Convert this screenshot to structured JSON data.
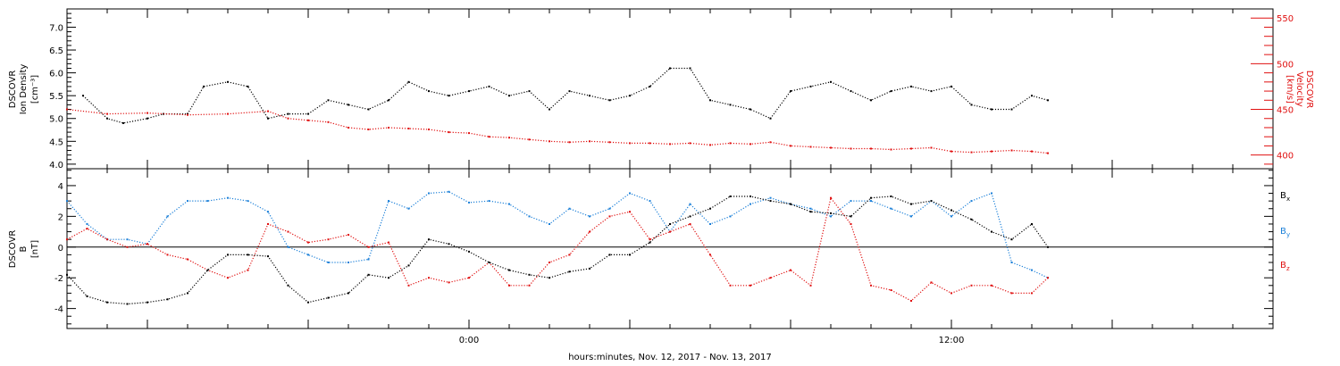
{
  "colors": {
    "black": "#000000",
    "red": "#e01010",
    "blue": "#1a7fd8",
    "axis": "#000000"
  },
  "xaxis": {
    "label": "hours:minutes, Nov. 12, 2017 - Nov. 13, 2017",
    "ticks": [
      "0:00",
      "12:00"
    ],
    "range_hours": [
      -10.0,
      20.0
    ]
  },
  "chart_data": [
    {
      "type": "scatter",
      "title": "",
      "ylabel": [
        "DSCOVR",
        "Ion Density",
        "[cm⁻³]"
      ],
      "ylabel2": [
        "DSCOVR",
        "Velocity",
        "[km/s]"
      ],
      "ylim": [
        3.9,
        7.4
      ],
      "y2lim": [
        385,
        560
      ],
      "yticks": [
        "4.0",
        "4.5",
        "5.0",
        "5.5",
        "6.0",
        "6.5",
        "7.0"
      ],
      "y2ticks": [
        "400",
        "450",
        "500",
        "550"
      ],
      "series": [
        {
          "name": "Ion Density",
          "axis": "left",
          "color": "#000000",
          "x": [
            -9.6,
            -9.0,
            -8.6,
            -8.0,
            -7.6,
            -7.0,
            -6.6,
            -6.0,
            -5.5,
            -5.0,
            -4.5,
            -4.0,
            -3.5,
            -3.0,
            -2.5,
            -2.0,
            -1.5,
            -1.0,
            -0.5,
            0.0,
            0.5,
            1.0,
            1.5,
            2.0,
            2.5,
            3.0,
            3.5,
            4.0,
            4.5,
            5.0,
            5.5,
            6.0,
            6.5,
            7.0,
            7.5,
            8.0,
            8.5,
            9.0,
            9.5,
            10.0,
            10.5,
            11.0,
            11.5,
            12.0,
            12.5,
            13.0,
            13.5,
            14.0,
            14.4
          ],
          "y": [
            5.5,
            5.0,
            4.9,
            5.0,
            5.1,
            5.1,
            5.7,
            5.8,
            5.7,
            5.0,
            5.1,
            5.1,
            5.4,
            5.3,
            5.2,
            5.4,
            5.8,
            5.6,
            5.5,
            5.6,
            5.7,
            5.5,
            5.6,
            5.2,
            5.6,
            5.5,
            5.4,
            5.5,
            5.7,
            6.1,
            6.1,
            5.4,
            5.3,
            5.2,
            5.0,
            5.6,
            5.7,
            5.8,
            5.6,
            5.4,
            5.6,
            5.7,
            5.6,
            5.7,
            5.3,
            5.2,
            5.2,
            5.5,
            5.4
          ]
        },
        {
          "name": "Velocity",
          "axis": "right",
          "color": "#e01010",
          "x": [
            -10.0,
            -9.0,
            -8.0,
            -7.0,
            -6.0,
            -5.0,
            -4.5,
            -4.0,
            -3.5,
            -3.0,
            -2.5,
            -2.0,
            -1.5,
            -1.0,
            -0.5,
            0.0,
            0.5,
            1.0,
            1.5,
            2.0,
            2.5,
            3.0,
            3.5,
            4.0,
            4.5,
            5.0,
            5.5,
            6.0,
            6.5,
            7.0,
            7.5,
            8.0,
            8.5,
            9.0,
            9.5,
            10.0,
            10.5,
            11.0,
            11.5,
            12.0,
            12.5,
            13.0,
            13.5,
            14.0,
            14.4
          ],
          "y": [
            450,
            445,
            446,
            444,
            445,
            448,
            440,
            438,
            436,
            430,
            428,
            430,
            429,
            428,
            425,
            424,
            420,
            419,
            417,
            415,
            414,
            415,
            414,
            413,
            413,
            412,
            413,
            411,
            413,
            412,
            414,
            410,
            409,
            408,
            407,
            407,
            406,
            407,
            408,
            404,
            403,
            404,
            405,
            404,
            402
          ]
        }
      ]
    },
    {
      "type": "scatter",
      "title": "",
      "ylabel": [
        "DSCOVR",
        "B",
        "[nT]"
      ],
      "ylim": [
        -5.3,
        5.1
      ],
      "yticks": [
        "-4",
        "-2",
        "0",
        "2",
        "4"
      ],
      "legend_position": "right",
      "series": [
        {
          "name": "Bx",
          "label_main": "B",
          "label_sub": "x",
          "color": "#000000",
          "x": [
            -10.0,
            -9.5,
            -9.0,
            -8.5,
            -8.0,
            -7.5,
            -7.0,
            -6.5,
            -6.0,
            -5.5,
            -5.0,
            -4.5,
            -4.0,
            -3.5,
            -3.0,
            -2.5,
            -2.0,
            -1.5,
            -1.0,
            -0.5,
            0.0,
            0.5,
            1.0,
            1.5,
            2.0,
            2.5,
            3.0,
            3.5,
            4.0,
            4.5,
            5.0,
            5.5,
            6.0,
            6.5,
            7.0,
            7.5,
            8.0,
            8.5,
            9.0,
            9.5,
            10.0,
            10.5,
            11.0,
            11.5,
            12.0,
            12.5,
            13.0,
            13.5,
            14.0,
            14.4
          ],
          "y": [
            -1.8,
            -3.2,
            -3.6,
            -3.7,
            -3.6,
            -3.4,
            -3.0,
            -1.5,
            -0.5,
            -0.5,
            -0.6,
            -2.5,
            -3.6,
            -3.3,
            -3.0,
            -1.8,
            -2.0,
            -1.2,
            0.5,
            0.2,
            -0.3,
            -1.0,
            -1.5,
            -1.8,
            -2.0,
            -1.6,
            -1.4,
            -0.5,
            -0.5,
            0.3,
            1.5,
            2.0,
            2.5,
            3.3,
            3.3,
            3.0,
            2.8,
            2.3,
            2.2,
            2.0,
            3.2,
            3.3,
            2.8,
            3.0,
            2.4,
            1.8,
            1.0,
            0.5,
            1.5,
            0.0
          ]
        },
        {
          "name": "By",
          "label_main": "B",
          "label_sub": "y",
          "color": "#1a7fd8",
          "x": [
            -10.0,
            -9.5,
            -9.0,
            -8.5,
            -8.0,
            -7.5,
            -7.0,
            -6.5,
            -6.0,
            -5.5,
            -5.0,
            -4.5,
            -4.0,
            -3.5,
            -3.0,
            -2.5,
            -2.0,
            -1.5,
            -1.0,
            -0.5,
            0.0,
            0.5,
            1.0,
            1.5,
            2.0,
            2.5,
            3.0,
            3.5,
            4.0,
            4.5,
            5.0,
            5.5,
            6.0,
            6.5,
            7.0,
            7.5,
            8.0,
            8.5,
            9.0,
            9.5,
            10.0,
            10.5,
            11.0,
            11.5,
            12.0,
            12.5,
            13.0,
            13.5,
            14.0,
            14.4
          ],
          "y": [
            3.0,
            1.5,
            0.5,
            0.5,
            0.2,
            2.0,
            3.0,
            3.0,
            3.2,
            3.0,
            2.3,
            0.0,
            -0.5,
            -1.0,
            -1.0,
            -0.8,
            3.0,
            2.5,
            3.5,
            3.6,
            2.9,
            3.0,
            2.8,
            2.0,
            1.5,
            2.5,
            2.0,
            2.5,
            3.5,
            3.0,
            1.0,
            2.8,
            1.5,
            2.0,
            2.8,
            3.2,
            2.8,
            2.5,
            2.0,
            3.0,
            3.0,
            2.5,
            2.0,
            3.0,
            2.0,
            3.0,
            3.5,
            -1.0,
            -1.5,
            -2.0
          ]
        },
        {
          "name": "Bz",
          "label_main": "B",
          "label_sub": "z",
          "color": "#e01010",
          "x": [
            -10.0,
            -9.5,
            -9.0,
            -8.5,
            -8.0,
            -7.5,
            -7.0,
            -6.5,
            -6.0,
            -5.5,
            -5.0,
            -4.5,
            -4.0,
            -3.5,
            -3.0,
            -2.5,
            -2.0,
            -1.5,
            -1.0,
            -0.5,
            0.0,
            0.5,
            1.0,
            1.5,
            2.0,
            2.5,
            3.0,
            3.5,
            4.0,
            4.5,
            5.0,
            5.5,
            6.0,
            6.5,
            7.0,
            7.5,
            8.0,
            8.5,
            9.0,
            9.5,
            10.0,
            10.5,
            11.0,
            11.5,
            12.0,
            12.5,
            13.0,
            13.5,
            14.0,
            14.4
          ],
          "y": [
            0.5,
            1.2,
            0.5,
            0.0,
            0.2,
            -0.5,
            -0.8,
            -1.5,
            -2.0,
            -1.5,
            1.5,
            1.0,
            0.3,
            0.5,
            0.8,
            0.0,
            0.3,
            -2.5,
            -2.0,
            -2.3,
            -2.0,
            -1.0,
            -2.5,
            -2.5,
            -1.0,
            -0.5,
            1.0,
            2.0,
            2.3,
            0.5,
            1.0,
            1.5,
            -0.5,
            -2.5,
            -2.5,
            -2.0,
            -1.5,
            -2.5,
            3.2,
            1.5,
            -2.5,
            -2.8,
            -3.5,
            -2.3,
            -3.0,
            -2.5,
            -2.5,
            -3.0,
            -3.0,
            -2.0
          ]
        }
      ]
    }
  ]
}
